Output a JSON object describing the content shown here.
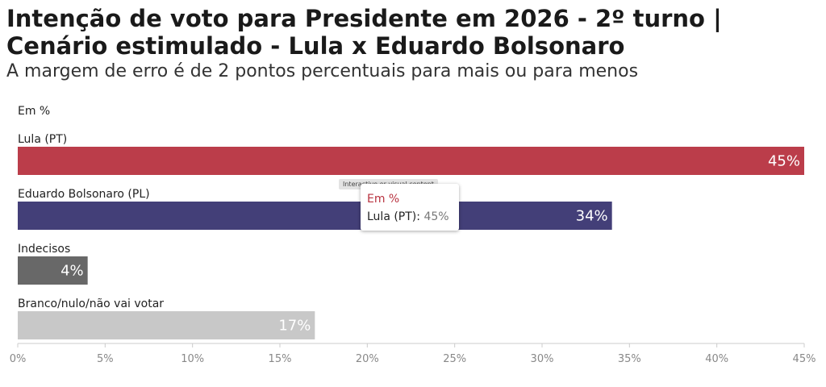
{
  "header": {
    "title": "Intenção de voto para Presidente em 2026 - 2º turno | Cenário estimulado - Lula x Eduardo Bolsonaro",
    "subtitle": "A margem de erro é de 2 pontos percentuais para mais ou para menos"
  },
  "tooltip": {
    "badge": "Interactive or visual content",
    "title": "Em %",
    "series_label": "Lula (PT):",
    "value_label": "45%"
  },
  "chart_data": {
    "type": "bar",
    "orientation": "horizontal",
    "unit_label": "Em %",
    "categories": [
      "Lula (PT)",
      "Eduardo Bolsonaro (PL)",
      "Indecisos",
      "Branco/nulo/não vai votar"
    ],
    "values": [
      45,
      34,
      4,
      17
    ],
    "value_labels": [
      "45%",
      "34%",
      "4%",
      "17%"
    ],
    "colors": [
      "#bb3d4a",
      "#433f78",
      "#686868",
      "#c8c8c8"
    ],
    "xlim": [
      0,
      45
    ],
    "xticks": [
      0,
      5,
      10,
      15,
      20,
      25,
      30,
      35,
      40,
      45
    ],
    "xtick_labels": [
      "0%",
      "5%",
      "10%",
      "15%",
      "20%",
      "25%",
      "30%",
      "35%",
      "40%",
      "45%"
    ],
    "grid": false
  }
}
